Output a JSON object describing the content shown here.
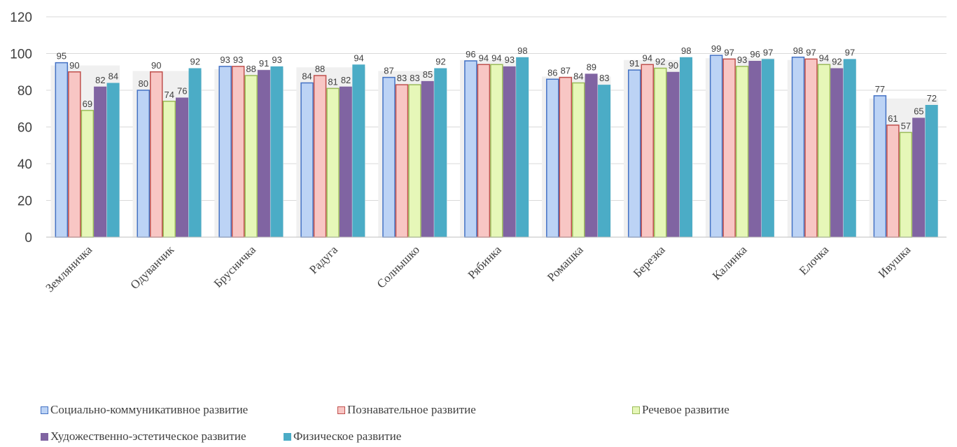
{
  "chart_data": {
    "type": "bar",
    "title": "",
    "xlabel": "",
    "ylabel": "",
    "ylim": [
      0,
      120
    ],
    "yticks": [
      "0",
      "20",
      "40",
      "60",
      "80",
      "100",
      "120"
    ],
    "grid": true,
    "legend_position": "bottom",
    "categories": [
      "Земляничка",
      "Одуванчик",
      "Брусничка",
      "Радуга",
      "Солнышко",
      "Рябинка",
      "Ромашка",
      "Березка",
      "Калинка",
      "Елочка",
      "Ивушка"
    ],
    "series": [
      {
        "name": "Социально-коммуникативное развитие",
        "color": "#bcd3f5",
        "border": "#4472c4",
        "values": [
          95,
          80,
          93,
          84,
          87,
          96,
          86,
          91,
          99,
          98,
          77
        ]
      },
      {
        "name": "Познавательное развитие",
        "color": "#f8c6c4",
        "border": "#c0504d",
        "values": [
          90,
          90,
          93,
          88,
          83,
          94,
          87,
          94,
          97,
          97,
          61
        ]
      },
      {
        "name": "Речевое развитие",
        "color": "#e6f7b8",
        "border": "#9bbb59",
        "values": [
          69,
          74,
          88,
          81,
          83,
          94,
          84,
          92,
          93,
          94,
          57
        ]
      },
      {
        "name": "Художественно-эстетическое развитие",
        "color": "#8064a2",
        "border": "#8064a2",
        "values": [
          82,
          76,
          91,
          82,
          85,
          93,
          89,
          90,
          96,
          92,
          65
        ]
      },
      {
        "name": "Физическое развитие",
        "color": "#4bacc6",
        "border": "#4bacc6",
        "values": [
          84,
          92,
          93,
          94,
          92,
          98,
          83,
          98,
          97,
          97,
          72
        ]
      }
    ]
  }
}
